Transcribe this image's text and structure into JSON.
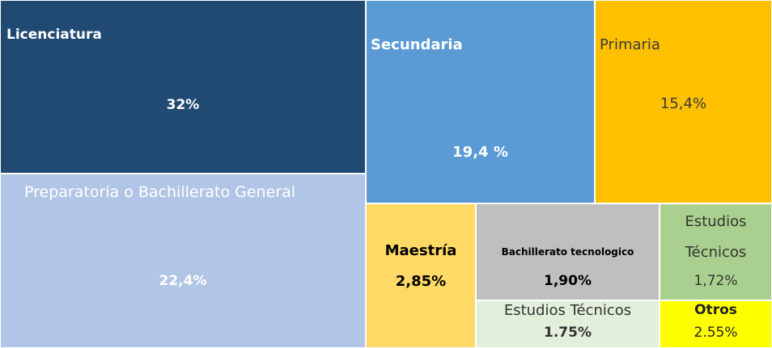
{
  "chart_data": {
    "type": "treemap",
    "categories": [
      "Licenciatura",
      "Secundaria",
      "Primaria",
      "Preparatoria o Bachillerato General",
      "Maestría",
      "Bachillerato tecnologico",
      "Estudios Técnicos",
      "Estudios Técnicos",
      "Otros"
    ],
    "values": [
      32,
      19.4,
      15.4,
      22.4,
      2.85,
      1.9,
      1.72,
      1.75,
      2.55
    ],
    "value_labels": [
      "32%",
      "19,4 %",
      "15,4%",
      "22,4%",
      "2,85%",
      "1,90%",
      "1,72%",
      "1.75%",
      "2.55%"
    ],
    "colors": [
      "#214a72",
      "#5b9bd5",
      "#ffc000",
      "#b1c5e6",
      "#ffd966",
      "#bfbfbf",
      "#a9d08e",
      "#e2efda",
      "#ffff00"
    ],
    "label_colors": [
      "#ffffff",
      "#ffffff",
      "#3a3a3a",
      "#ffffff",
      "#000000",
      "#000000",
      "#333333",
      "#333333",
      "#222222"
    ]
  }
}
